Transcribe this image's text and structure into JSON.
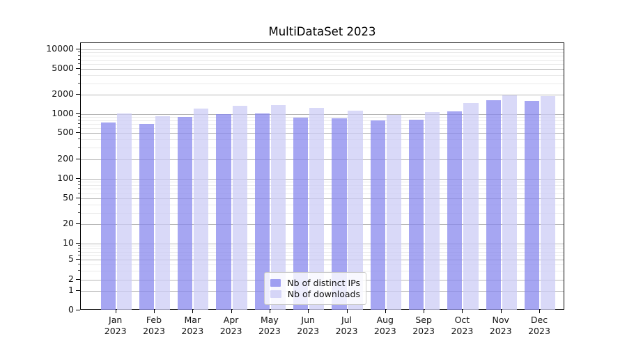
{
  "chart_data": {
    "type": "bar",
    "title": "MultiDataSet 2023",
    "x_categories": [
      "Jan",
      "Feb",
      "Mar",
      "Apr",
      "May",
      "Jun",
      "Jul",
      "Aug",
      "Sep",
      "Oct",
      "Nov",
      "Dec"
    ],
    "x_year": "2023",
    "series": [
      {
        "name": "Nb of distinct IPs",
        "color": "#8888ee",
        "values": [
          740,
          695,
          905,
          1000,
          1020,
          875,
          855,
          790,
          825,
          1100,
          1640,
          1590
        ]
      },
      {
        "name": "Nb of downloads",
        "color": "#ccccf5",
        "values": [
          1020,
          940,
          1230,
          1360,
          1370,
          1260,
          1150,
          975,
          1080,
          1490,
          1970,
          1890
        ]
      }
    ],
    "y_scale": "symlog",
    "y_ticks": [
      0,
      1,
      2,
      5,
      10,
      20,
      50,
      100,
      200,
      500,
      1000,
      2000,
      5000,
      10000
    ],
    "y_minor_ticks": [
      3,
      4,
      6,
      7,
      8,
      9,
      30,
      40,
      60,
      70,
      80,
      90,
      300,
      400,
      600,
      700,
      800,
      900,
      3000,
      4000,
      6000,
      7000,
      8000,
      9000
    ],
    "ylim": [
      0,
      10000
    ],
    "grid": true,
    "legend_position": "lower center"
  }
}
